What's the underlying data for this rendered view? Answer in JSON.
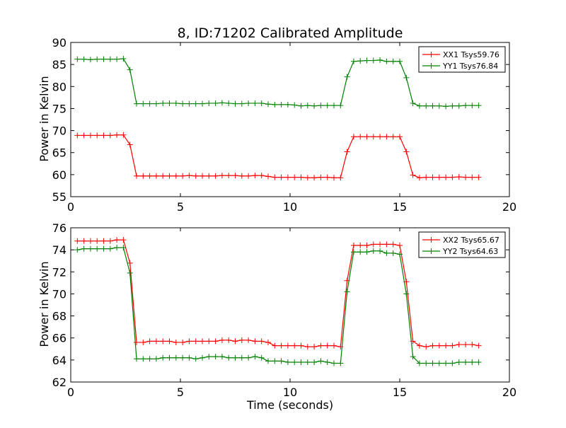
{
  "chart_data": [
    {
      "type": "line",
      "title": "8, ID:71202 Calibrated Amplitude",
      "xlabel": "",
      "ylabel": "Power in Kelvin",
      "xlim": [
        0,
        20
      ],
      "ylim": [
        55,
        90
      ],
      "xticks": [
        "0",
        "5",
        "10",
        "15",
        "20"
      ],
      "yticks": [
        "55",
        "60",
        "65",
        "70",
        "75",
        "80",
        "85",
        "90"
      ],
      "legend": "top-right",
      "x": [
        0.3,
        0.6,
        0.9,
        1.2,
        1.5,
        1.8,
        2.1,
        2.4,
        2.7,
        3.0,
        3.3,
        3.6,
        3.9,
        4.2,
        4.5,
        4.8,
        5.1,
        5.4,
        5.7,
        6.0,
        6.3,
        6.6,
        6.9,
        7.2,
        7.5,
        7.8,
        8.1,
        8.4,
        8.7,
        9.0,
        9.3,
        9.6,
        9.9,
        10.2,
        10.5,
        10.8,
        11.1,
        11.4,
        11.7,
        12.0,
        12.3,
        12.6,
        12.9,
        13.2,
        13.5,
        13.8,
        14.1,
        14.4,
        14.7,
        15.0,
        15.3,
        15.6,
        15.9,
        16.2,
        16.5,
        16.8,
        17.1,
        17.4,
        17.7,
        18.0,
        18.3,
        18.6
      ],
      "series": [
        {
          "name": "XX1 Tsys59.76",
          "color": "#ff0000",
          "values": [
            68.9,
            68.9,
            68.9,
            68.9,
            68.9,
            68.9,
            69.0,
            69.0,
            66.8,
            59.7,
            59.7,
            59.7,
            59.7,
            59.7,
            59.7,
            59.7,
            59.7,
            59.8,
            59.7,
            59.7,
            59.7,
            59.7,
            59.8,
            59.8,
            59.8,
            59.7,
            59.7,
            59.8,
            59.8,
            59.6,
            59.4,
            59.4,
            59.4,
            59.4,
            59.4,
            59.3,
            59.3,
            59.4,
            59.4,
            59.3,
            59.3,
            65.2,
            68.6,
            68.6,
            68.6,
            68.6,
            68.6,
            68.6,
            68.6,
            68.6,
            65.2,
            59.9,
            59.3,
            59.4,
            59.4,
            59.4,
            59.4,
            59.4,
            59.5,
            59.4,
            59.4,
            59.4
          ]
        },
        {
          "name": "YY1 Tsys76.84",
          "color": "#008000",
          "values": [
            86.2,
            86.2,
            86.1,
            86.2,
            86.2,
            86.2,
            86.2,
            86.3,
            83.8,
            76.1,
            76.1,
            76.1,
            76.1,
            76.2,
            76.2,
            76.2,
            76.1,
            76.1,
            76.1,
            76.1,
            76.2,
            76.2,
            76.3,
            76.2,
            76.1,
            76.1,
            76.2,
            76.2,
            76.2,
            76.0,
            75.9,
            75.9,
            75.9,
            75.8,
            75.6,
            75.7,
            75.6,
            75.7,
            75.7,
            75.7,
            75.7,
            82.2,
            85.7,
            85.8,
            85.9,
            85.9,
            86.0,
            85.7,
            85.7,
            85.7,
            82.0,
            76.2,
            75.6,
            75.6,
            75.6,
            75.6,
            75.5,
            75.6,
            75.6,
            75.7,
            75.7,
            75.7
          ]
        }
      ]
    },
    {
      "type": "line",
      "title": "",
      "xlabel": "Time (seconds)",
      "ylabel": "Power in Kelvin",
      "xlim": [
        0,
        20
      ],
      "ylim": [
        62,
        76
      ],
      "xticks": [
        "0",
        "5",
        "10",
        "15",
        "20"
      ],
      "yticks": [
        "62",
        "64",
        "66",
        "68",
        "70",
        "72",
        "74",
        "76"
      ],
      "legend": "top-right",
      "x": [
        0.3,
        0.6,
        0.9,
        1.2,
        1.5,
        1.8,
        2.1,
        2.4,
        2.7,
        3.0,
        3.3,
        3.6,
        3.9,
        4.2,
        4.5,
        4.8,
        5.1,
        5.4,
        5.7,
        6.0,
        6.3,
        6.6,
        6.9,
        7.2,
        7.5,
        7.8,
        8.1,
        8.4,
        8.7,
        9.0,
        9.3,
        9.6,
        9.9,
        10.2,
        10.5,
        10.8,
        11.1,
        11.4,
        11.7,
        12.0,
        12.3,
        12.6,
        12.9,
        13.2,
        13.5,
        13.8,
        14.1,
        14.4,
        14.7,
        15.0,
        15.3,
        15.6,
        15.9,
        16.2,
        16.5,
        16.8,
        17.1,
        17.4,
        17.7,
        18.0,
        18.3,
        18.6
      ],
      "series": [
        {
          "name": "XX2 Tsys65.67",
          "color": "#ff0000",
          "values": [
            74.8,
            74.8,
            74.8,
            74.8,
            74.8,
            74.8,
            74.9,
            74.9,
            72.8,
            65.6,
            65.6,
            65.7,
            65.7,
            65.7,
            65.7,
            65.6,
            65.6,
            65.7,
            65.7,
            65.7,
            65.7,
            65.7,
            65.8,
            65.8,
            65.7,
            65.8,
            65.8,
            65.7,
            65.7,
            65.6,
            65.3,
            65.3,
            65.3,
            65.3,
            65.3,
            65.2,
            65.2,
            65.3,
            65.3,
            65.3,
            65.2,
            71.2,
            74.4,
            74.4,
            74.4,
            74.5,
            74.5,
            74.5,
            74.5,
            74.4,
            71.1,
            65.7,
            65.3,
            65.2,
            65.3,
            65.3,
            65.3,
            65.3,
            65.4,
            65.4,
            65.4,
            65.3
          ]
        },
        {
          "name": "YY2 Tsys64.63",
          "color": "#008000",
          "values": [
            74.0,
            74.1,
            74.1,
            74.1,
            74.1,
            74.1,
            74.2,
            74.2,
            71.9,
            64.1,
            64.1,
            64.1,
            64.1,
            64.2,
            64.2,
            64.2,
            64.2,
            64.2,
            64.1,
            64.2,
            64.3,
            64.3,
            64.3,
            64.2,
            64.2,
            64.2,
            64.2,
            64.3,
            64.2,
            63.9,
            63.9,
            63.9,
            63.8,
            63.8,
            63.8,
            63.8,
            63.8,
            63.9,
            63.8,
            63.7,
            63.7,
            70.2,
            73.8,
            73.8,
            73.8,
            73.9,
            73.9,
            73.7,
            73.7,
            73.6,
            70.0,
            64.3,
            63.7,
            63.7,
            63.7,
            63.7,
            63.7,
            63.7,
            63.8,
            63.8,
            63.8,
            63.8
          ]
        }
      ]
    }
  ]
}
